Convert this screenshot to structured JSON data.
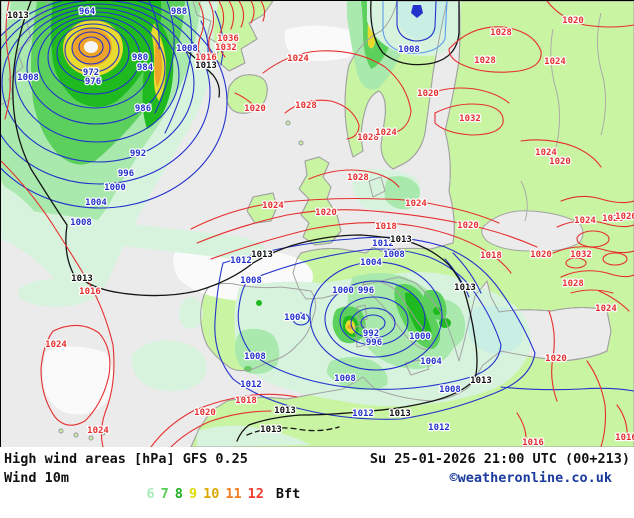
{
  "footer": {
    "title": "High wind areas [hPa] GFS 0.25",
    "datetime": "Su 25-01-2026 21:00 UTC (00+213)",
    "variable": "Wind 10m",
    "unit": "Bft",
    "copyright": "©weatheronline.co.uk",
    "scale": [
      {
        "value": "6",
        "color": "#a9ecba"
      },
      {
        "value": "7",
        "color": "#55cc55"
      },
      {
        "value": "8",
        "color": "#1fae1f"
      },
      {
        "value": "9",
        "color": "#dedd00"
      },
      {
        "value": "10",
        "color": "#dda800"
      },
      {
        "value": "11",
        "color": "#ee7f1c"
      },
      {
        "value": "12",
        "color": "#ee3c2e"
      }
    ]
  },
  "map": {
    "colors": {
      "sea": "#ebebeb",
      "land": "#c9f4a1",
      "coast": "#a3a3a3",
      "mint": "#d8f3dd",
      "g1": "#a9e9ad",
      "g2": "#5cd05c",
      "g3": "#1fba20",
      "yel": "#e8da2e",
      "org": "#eda428",
      "cyan": "#c9eee4"
    },
    "label_colors": {
      "blue": "#2230cc",
      "red": "#e62e2e",
      "black": "#101010"
    },
    "pressure_labels": [
      [
        "964",
        84,
        6,
        "blue"
      ],
      [
        "988",
        176,
        6,
        "blue"
      ],
      [
        "980",
        137,
        52,
        "blue"
      ],
      [
        "984",
        142,
        62,
        "blue"
      ],
      [
        "1008",
        184,
        43,
        "blue"
      ],
      [
        "972",
        88,
        67,
        "blue"
      ],
      [
        "976",
        90,
        76,
        "blue"
      ],
      [
        "986",
        140,
        103,
        "blue"
      ],
      [
        "1008",
        25,
        72,
        "blue"
      ],
      [
        "992",
        135,
        148,
        "blue"
      ],
      [
        "996",
        123,
        168,
        "blue"
      ],
      [
        "1000",
        112,
        182,
        "blue"
      ],
      [
        "1004",
        93,
        197,
        "blue"
      ],
      [
        "1008",
        78,
        217,
        "blue"
      ],
      [
        "1012",
        238,
        255,
        "blue"
      ],
      [
        "1008",
        248,
        275,
        "blue"
      ],
      [
        "1004",
        292,
        312,
        "blue"
      ],
      [
        "1008",
        252,
        351,
        "blue"
      ],
      [
        "1012",
        248,
        379,
        "blue"
      ],
      [
        "1012",
        380,
        238,
        "blue"
      ],
      [
        "1008",
        391,
        249,
        "blue"
      ],
      [
        "1004",
        368,
        257,
        "blue"
      ],
      [
        "1000",
        340,
        285,
        "blue"
      ],
      [
        "996",
        363,
        285,
        "blue"
      ],
      [
        "992",
        368,
        328,
        "blue"
      ],
      [
        "996",
        371,
        337,
        "blue"
      ],
      [
        "1000",
        417,
        331,
        "blue"
      ],
      [
        "1004",
        428,
        356,
        "blue"
      ],
      [
        "1008",
        342,
        373,
        "blue"
      ],
      [
        "1008",
        447,
        384,
        "blue"
      ],
      [
        "1012",
        360,
        408,
        "blue"
      ],
      [
        "1012",
        436,
        422,
        "blue"
      ],
      [
        "1008",
        406,
        44,
        "blue"
      ],
      [
        "1013",
        15,
        10,
        "black"
      ],
      [
        "1013",
        203,
        60,
        "black"
      ],
      [
        "1013",
        259,
        249,
        "black"
      ],
      [
        "1013",
        398,
        234,
        "black"
      ],
      [
        "1013",
        79,
        273,
        "black"
      ],
      [
        "1013",
        282,
        405,
        "black"
      ],
      [
        "1013",
        268,
        424,
        "black"
      ],
      [
        "1013",
        397,
        408,
        "black"
      ],
      [
        "1013",
        462,
        282,
        "black"
      ],
      [
        "1013",
        478,
        375,
        "black"
      ],
      [
        "1036",
        225,
        33,
        "red"
      ],
      [
        "1032",
        223,
        42,
        "red"
      ],
      [
        "1016",
        203,
        52,
        "red"
      ],
      [
        "1024",
        295,
        53,
        "red"
      ],
      [
        "1028",
        303,
        100,
        "red"
      ],
      [
        "1020",
        252,
        103,
        "red"
      ],
      [
        "1028",
        365,
        132,
        "red"
      ],
      [
        "1024",
        383,
        127,
        "red"
      ],
      [
        "1028",
        498,
        27,
        "red"
      ],
      [
        "1020",
        570,
        15,
        "red"
      ],
      [
        "1028",
        482,
        55,
        "red"
      ],
      [
        "1024",
        552,
        56,
        "red"
      ],
      [
        "1020",
        425,
        88,
        "red"
      ],
      [
        "1032",
        467,
        113,
        "red"
      ],
      [
        "1024",
        543,
        147,
        "red"
      ],
      [
        "1020",
        557,
        156,
        "red"
      ],
      [
        "1028",
        355,
        172,
        "red"
      ],
      [
        "1024",
        270,
        200,
        "red"
      ],
      [
        "1020",
        323,
        207,
        "red"
      ],
      [
        "1018",
        383,
        221,
        "red"
      ],
      [
        "1024",
        413,
        198,
        "red"
      ],
      [
        "1020",
        465,
        220,
        "red"
      ],
      [
        "1018",
        488,
        250,
        "red"
      ],
      [
        "1020",
        538,
        249,
        "red"
      ],
      [
        "1024",
        582,
        215,
        "red"
      ],
      [
        "1028",
        610,
        213,
        "red"
      ],
      [
        "1020",
        623,
        211,
        "red"
      ],
      [
        "1032",
        578,
        249,
        "red"
      ],
      [
        "1028",
        570,
        278,
        "red"
      ],
      [
        "1024",
        603,
        303,
        "red"
      ],
      [
        "1020",
        553,
        353,
        "red"
      ],
      [
        "1016",
        530,
        437,
        "red"
      ],
      [
        "1016",
        623,
        432,
        "red"
      ],
      [
        "1018",
        243,
        395,
        "red"
      ],
      [
        "1020",
        202,
        407,
        "red"
      ],
      [
        "1016",
        87,
        286,
        "red"
      ],
      [
        "1024",
        53,
        339,
        "red"
      ],
      [
        "1024",
        95,
        425,
        "red"
      ]
    ]
  }
}
